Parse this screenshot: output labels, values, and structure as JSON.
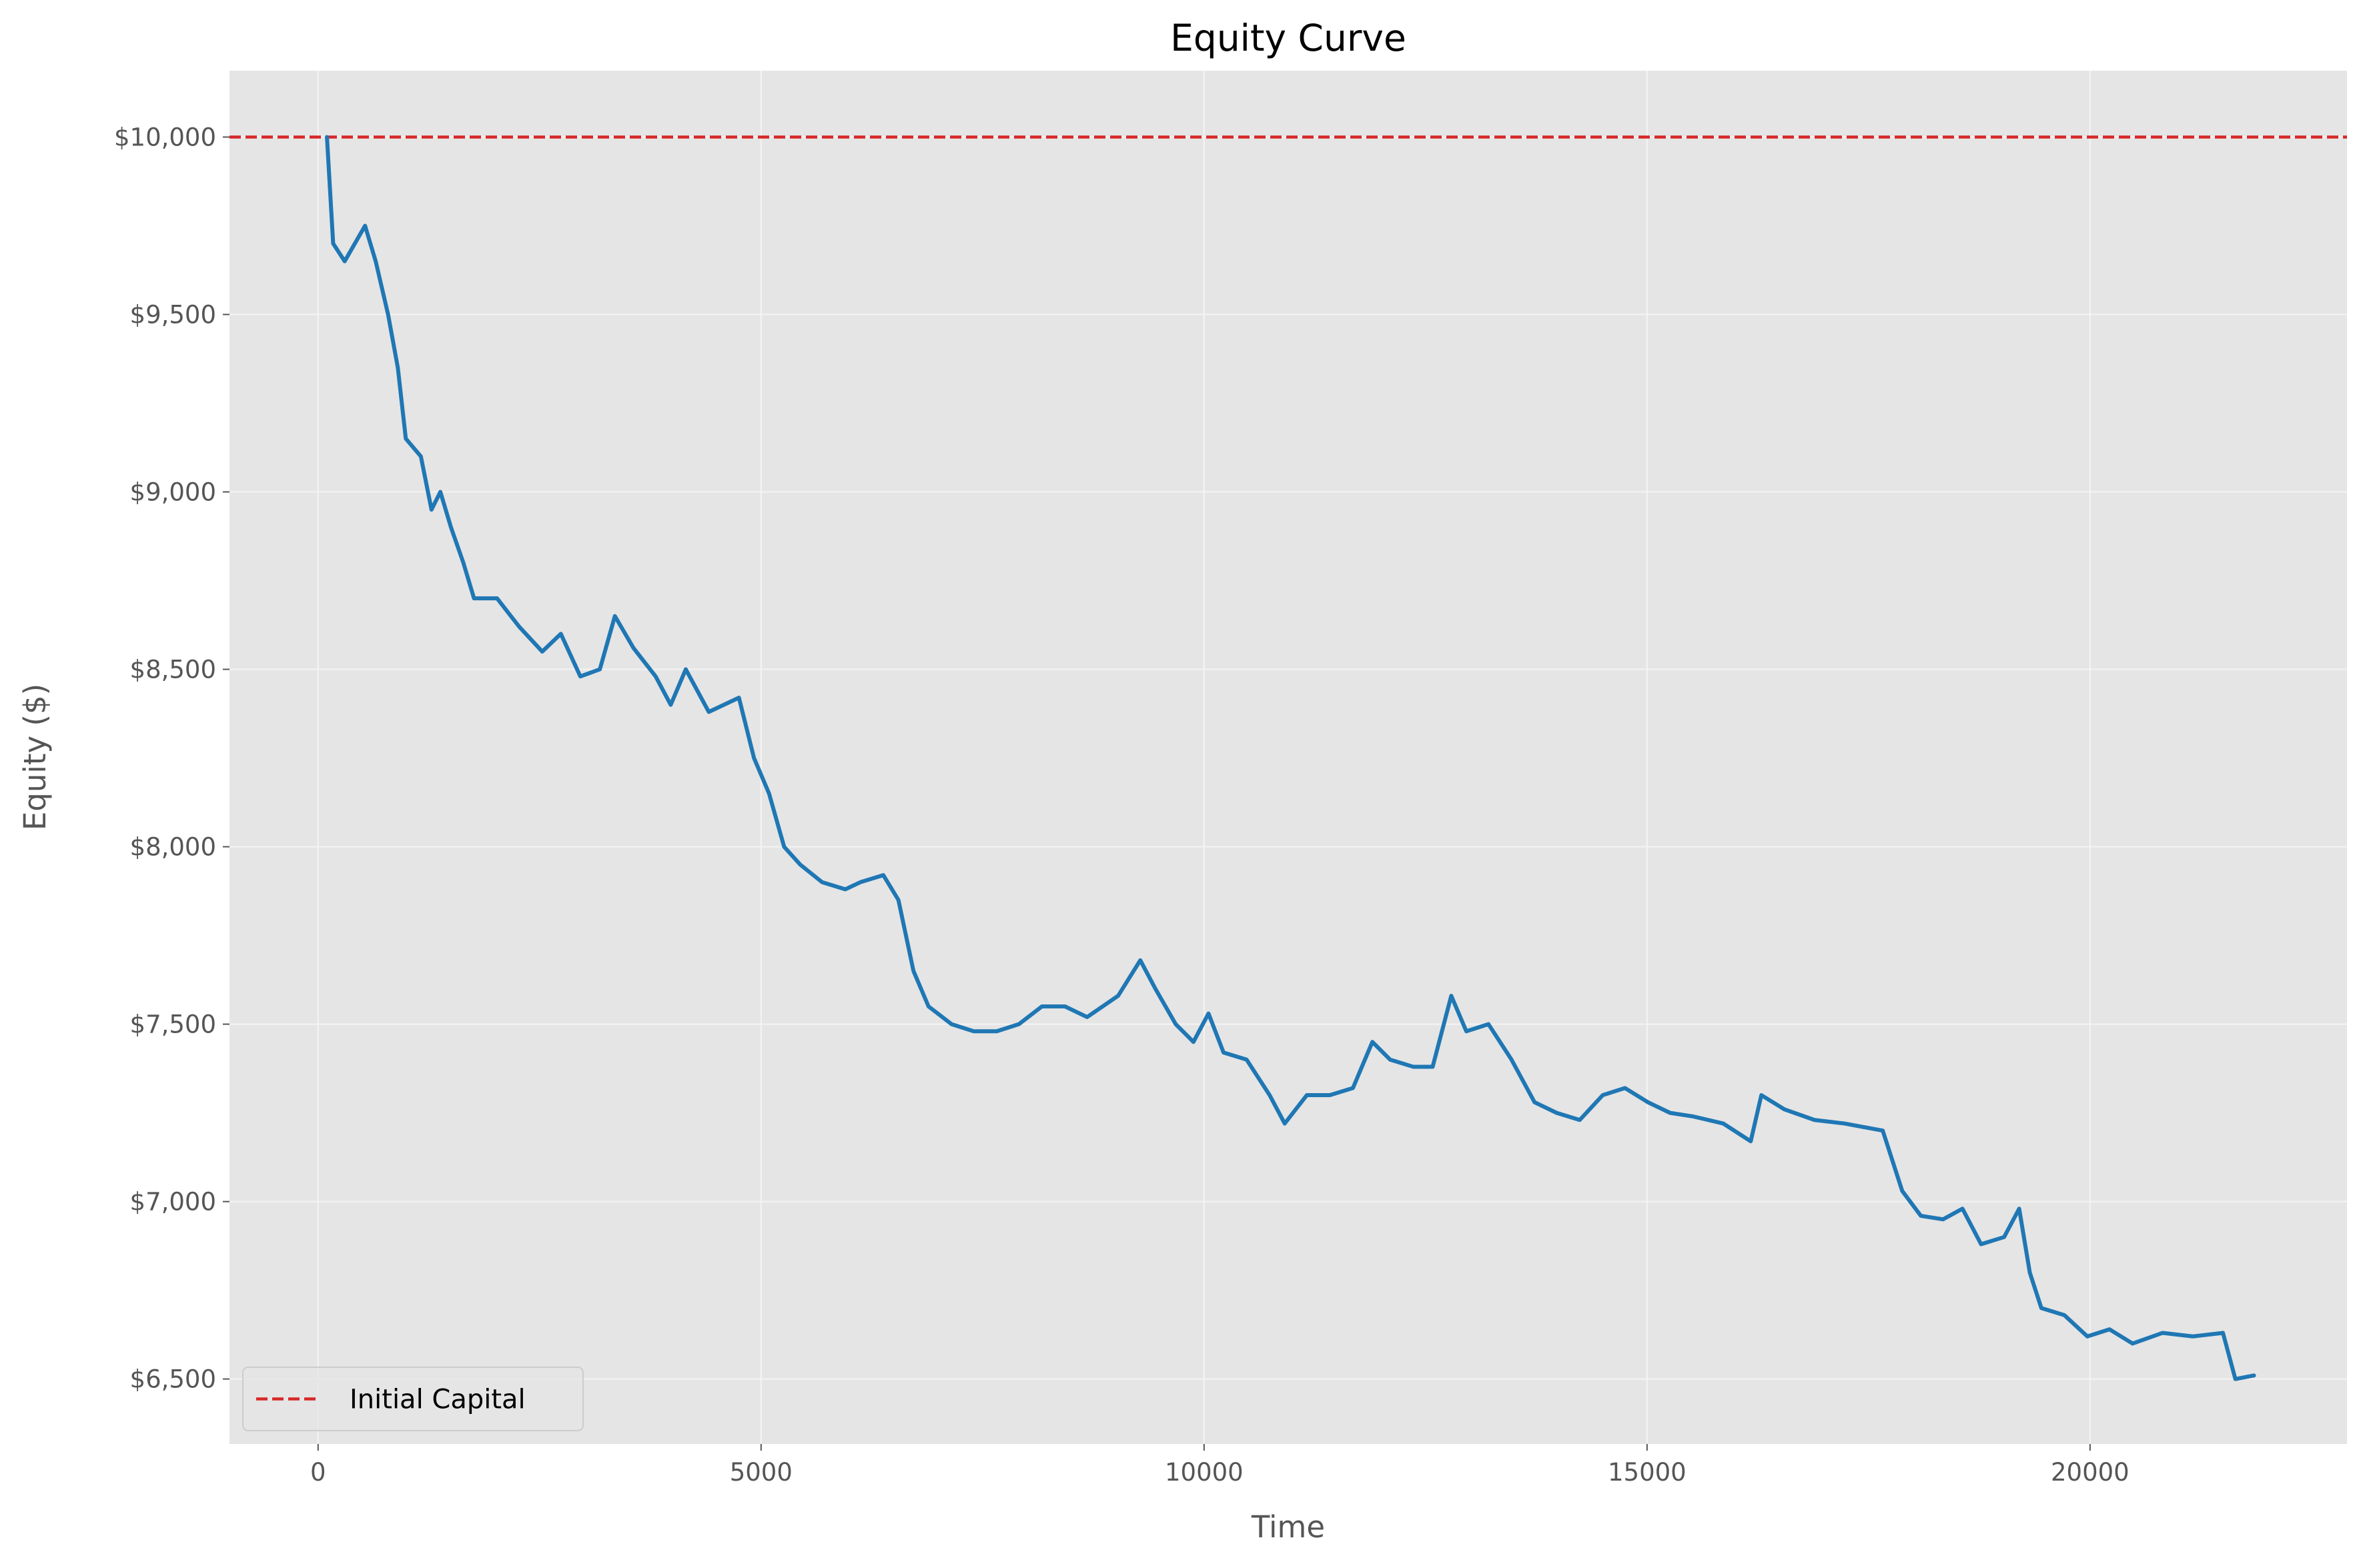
{
  "chart_data": {
    "type": "line",
    "title": "Equity Curve",
    "x_label": "Time",
    "y_label": "Equity ($)",
    "x": [
      100,
      170,
      300,
      530,
      650,
      790,
      900,
      990,
      1160,
      1280,
      1380,
      1500,
      1640,
      1760,
      2020,
      2270,
      2530,
      2740,
      2960,
      3180,
      3350,
      3560,
      3810,
      3980,
      4150,
      4410,
      4750,
      4920,
      5090,
      5260,
      5440,
      5690,
      5950,
      6120,
      6380,
      6550,
      6720,
      6890,
      7150,
      7400,
      7660,
      7910,
      8170,
      8430,
      8680,
      9030,
      9280,
      9450,
      9680,
      9880,
      10050,
      10220,
      10480,
      10740,
      10910,
      11160,
      11420,
      11680,
      11900,
      12100,
      12360,
      12580,
      12790,
      12960,
      13210,
      13470,
      13730,
      13980,
      14240,
      14500,
      14750,
      15010,
      15260,
      15520,
      15860,
      16170,
      16290,
      16550,
      16890,
      17230,
      17660,
      17880,
      18090,
      18340,
      18560,
      18770,
      19030,
      19200,
      19320,
      19450,
      19710,
      19970,
      20220,
      20480,
      20820,
      21160,
      21500,
      21640,
      21850
    ],
    "values": [
      10000,
      9700,
      9650,
      9750,
      9650,
      9500,
      9350,
      9150,
      9100,
      8950,
      9000,
      8900,
      8800,
      8700,
      8700,
      8620,
      8550,
      8600,
      8480,
      8500,
      8650,
      8560,
      8480,
      8400,
      8500,
      8380,
      8420,
      8250,
      8150,
      8000,
      7950,
      7900,
      7880,
      7900,
      7920,
      7850,
      7650,
      7550,
      7500,
      7480,
      7480,
      7500,
      7550,
      7550,
      7520,
      7580,
      7680,
      7600,
      7500,
      7450,
      7530,
      7420,
      7400,
      7300,
      7220,
      7300,
      7300,
      7320,
      7450,
      7400,
      7380,
      7380,
      7580,
      7480,
      7500,
      7400,
      7280,
      7250,
      7230,
      7300,
      7320,
      7280,
      7250,
      7240,
      7220,
      7170,
      7300,
      7260,
      7230,
      7220,
      7200,
      7030,
      6960,
      6950,
      6980,
      6880,
      6900,
      6980,
      6800,
      6700,
      6680,
      6620,
      6640,
      6600,
      6630,
      6620,
      6630,
      6500,
      6510
    ],
    "color": "#1f77b4",
    "hline": {
      "value": 10000,
      "name": "Initial Capital",
      "color": "#d62728"
    },
    "xlim": [
      -1000,
      22900
    ],
    "ylim": [
      6317,
      10187
    ],
    "xticks": [
      0,
      5000,
      10000,
      15000,
      20000
    ],
    "yticks": [
      {
        "value": 6500,
        "label": "$6,500"
      },
      {
        "value": 7000,
        "label": "$7,000"
      },
      {
        "value": 7500,
        "label": "$7,500"
      },
      {
        "value": 8000,
        "label": "$8,000"
      },
      {
        "value": 8500,
        "label": "$8,500"
      },
      {
        "value": 9000,
        "label": "$9,000"
      },
      {
        "value": 9500,
        "label": "$9,500"
      },
      {
        "value": 10000,
        "label": "$10,000"
      }
    ],
    "grid": true,
    "legend_position": "lower left"
  }
}
